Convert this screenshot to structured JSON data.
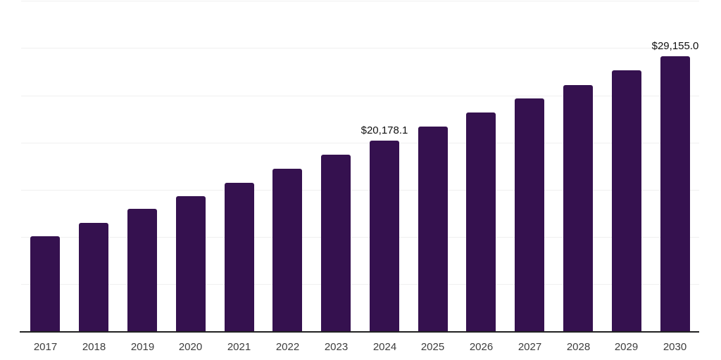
{
  "chart_data": {
    "type": "bar",
    "title": "",
    "xlabel": "",
    "ylabel": "",
    "categories": [
      "2017",
      "2018",
      "2019",
      "2020",
      "2021",
      "2022",
      "2023",
      "2024",
      "2025",
      "2026",
      "2027",
      "2028",
      "2029",
      "2030"
    ],
    "values": [
      10030,
      11440,
      12930,
      14330,
      15760,
      17180,
      18720,
      20178.1,
      21650,
      23190,
      24630,
      26070,
      27660,
      29155
    ],
    "data_labels": {
      "2024": "$20,178.1",
      "2030": "$29,155.0"
    },
    "ylim": [
      0,
      35000
    ],
    "gridline_step": 5000,
    "grid": true,
    "y_axis_tick_labels_visible": false,
    "legend": "none"
  },
  "colors": {
    "bar": "#35114f",
    "axis_line": "#222222",
    "gridline": "#f0f0f0",
    "tick_label": "#3d3d3d",
    "data_label": "#111111",
    "background": "#ffffff"
  }
}
